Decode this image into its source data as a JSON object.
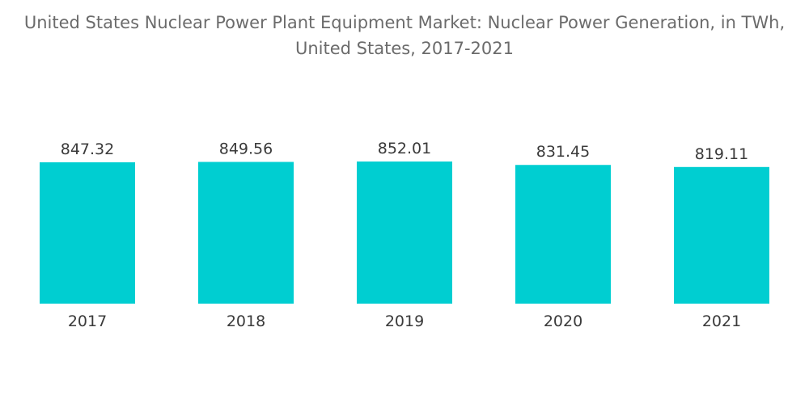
{
  "chart_data": {
    "type": "bar",
    "title": "United States Nuclear Power Plant Equipment Market: Nuclear Power Generation, in TWh, United States, 2017-2021",
    "title_lines": [
      "United States Nuclear Power Plant Equipment Market: Nuclear Power Generation, in TWh,",
      "United States, 2017-2021"
    ],
    "categories": [
      "2017",
      "2018",
      "2019",
      "2020",
      "2021"
    ],
    "values": [
      847.32,
      849.56,
      852.01,
      831.45,
      819.11
    ],
    "value_labels": [
      "847.32",
      "849.56",
      "852.01",
      "831.45",
      "819.11"
    ],
    "xlabel": "",
    "ylabel": "",
    "ylim": [
      0,
      852.01
    ],
    "grid": false,
    "legend": "none",
    "bar_color": "#00ced1"
  }
}
